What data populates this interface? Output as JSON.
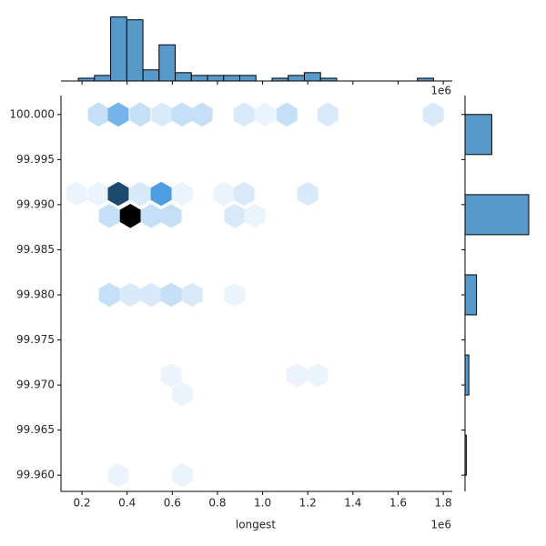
{
  "chart_data": [
    {
      "type": "hexbin",
      "xlabel": "longest",
      "x_offset": "1e6",
      "xlim": [
        0.107,
        1.84
      ],
      "ylim": [
        99.9582,
        100.0021
      ],
      "xticks": [
        0.2,
        0.4,
        0.6,
        0.8,
        {
          "value": 1,
          "label": "1.0"
        },
        1.2,
        1.4,
        1.6,
        1.8
      ],
      "yticks": [
        {
          "value": 99.96,
          "label": "99.960"
        },
        {
          "value": 99.965,
          "label": "99.965"
        },
        {
          "value": 99.97,
          "label": "99.970"
        },
        {
          "value": 99.975,
          "label": "99.975"
        },
        {
          "value": 99.98,
          "label": "99.980"
        },
        {
          "value": 99.985,
          "label": "99.985"
        },
        {
          "value": 99.99,
          "label": "99.990"
        },
        {
          "value": 99.995,
          "label": "99.995"
        },
        {
          "value": 100,
          "label": "100.000"
        }
      ],
      "colormap": [
        "#ffffff",
        "#3b93e0",
        "#000000"
      ],
      "x": [
        0.273,
        0.361,
        0.458,
        0.555,
        0.644,
        0.732,
        0.918,
        1.01,
        1.107,
        1.289,
        1.756,
        0.176,
        0.273,
        0.361,
        0.458,
        0.551,
        0.644,
        0.829,
        0.918,
        1.2,
        0.321,
        0.414,
        0.506,
        0.595,
        0.877,
        0.966,
        0.321,
        0.414,
        0.506,
        0.595,
        0.688,
        0.877,
        0.595,
        1.152,
        1.244,
        0.644,
        0.361,
        0.644
      ],
      "y": [
        100,
        100,
        100,
        100,
        100,
        100,
        100,
        100,
        100,
        100,
        100,
        99.9912,
        99.9912,
        99.9912,
        99.9912,
        99.9912,
        99.9912,
        99.9912,
        99.9912,
        99.9912,
        99.98875,
        99.98875,
        99.98875,
        99.98875,
        99.98875,
        99.98875,
        99.98,
        99.98,
        99.98,
        99.98,
        99.98,
        99.98,
        99.9711,
        99.9711,
        99.9711,
        99.969,
        99.96,
        99.96
      ],
      "counts": [
        3,
        7,
        3,
        2,
        3,
        3,
        2,
        1,
        3,
        2,
        2,
        1,
        1,
        15,
        2,
        9,
        1,
        1,
        2,
        2,
        3,
        20,
        3,
        3,
        2,
        1,
        3,
        2,
        2,
        3,
        2,
        1,
        1,
        1,
        1,
        1,
        1,
        1
      ]
    },
    {
      "type": "histogram",
      "orientation": "vertical",
      "color": "#5799c9",
      "xlim": [
        0.107,
        1.84
      ],
      "ylim": [
        0,
        24.2
      ],
      "bins": [
        0.184,
        0.2555,
        0.327,
        0.3985,
        0.47,
        0.5415,
        0.613,
        0.6845,
        0.756,
        0.8275,
        0.899,
        0.9705,
        1.042,
        1.1135,
        1.185,
        1.2565,
        1.328,
        1.3995,
        1.471,
        1.5425,
        1.614,
        1.6855,
        1.757
      ],
      "counts": [
        1,
        2,
        23,
        22,
        4,
        13,
        3,
        2,
        2,
        2,
        2,
        0,
        1,
        2,
        3,
        1,
        0,
        0,
        0,
        0,
        0,
        1
      ]
    },
    {
      "type": "histogram",
      "orientation": "horizontal",
      "color": "#5799c9",
      "ylim": [
        99.9582,
        100.0021
      ],
      "xlim": [
        0,
        51.4
      ],
      "bins": [
        99.96,
        99.96444,
        99.96889,
        99.97333,
        99.97778,
        99.98222,
        99.98667,
        99.99111,
        99.99556,
        100.0
      ],
      "counts": [
        1,
        0,
        3,
        0,
        9,
        0,
        50,
        0,
        21
      ]
    }
  ]
}
